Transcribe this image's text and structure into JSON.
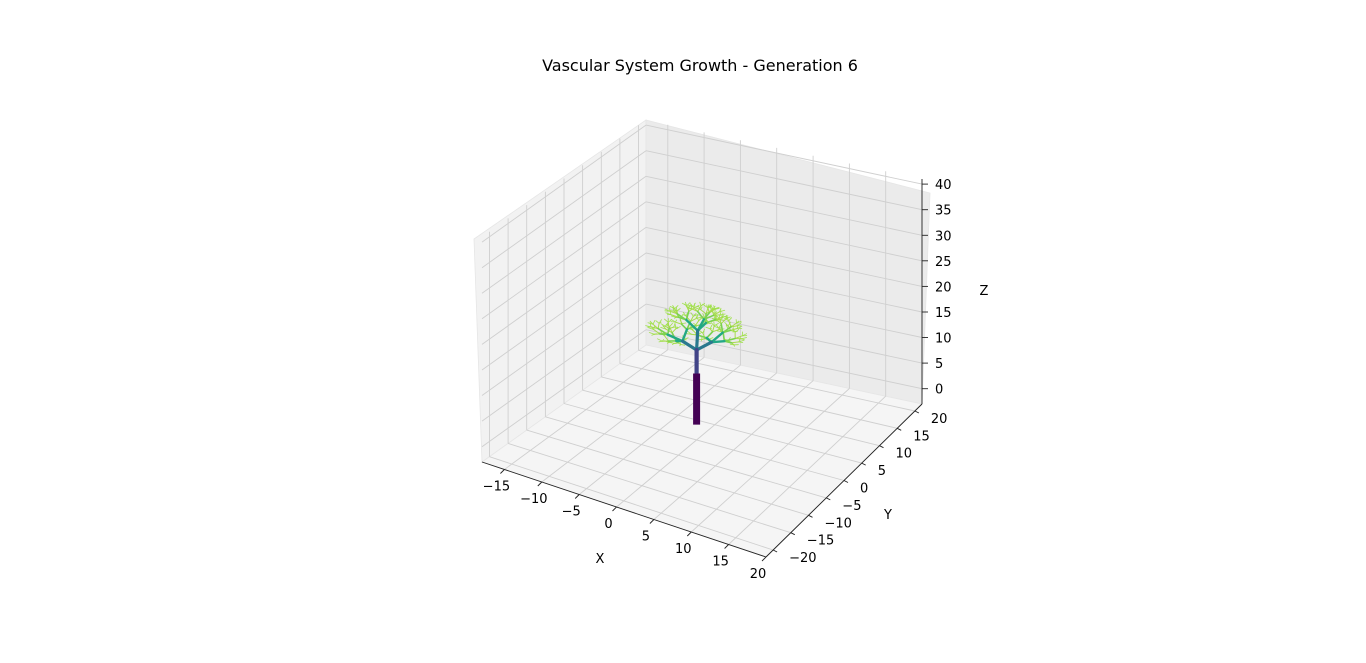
{
  "chart_data": {
    "type": "line3d",
    "title": "Vascular System Growth - Generation 6",
    "xlabel": "X",
    "ylabel": "Y",
    "zlabel": "Z",
    "xlim": [
      -18,
      20
    ],
    "ylim": [
      -22,
      22
    ],
    "zlim": [
      -3,
      41
    ],
    "x_ticks": [
      -15,
      -10,
      -5,
      0,
      5,
      10,
      15,
      20
    ],
    "y_ticks": [
      -20,
      -15,
      -10,
      -5,
      0,
      5,
      10,
      15,
      20
    ],
    "z_ticks": [
      0,
      5,
      10,
      15,
      20,
      25,
      30,
      35,
      40
    ],
    "grid": true,
    "colormap": "viridis",
    "generations": 6,
    "generation_colors": [
      "#440154",
      "#414487",
      "#2a788e",
      "#22a884",
      "#7ad151",
      "#a6db4a",
      "#9fe04b"
    ],
    "trunk": {
      "start": [
        0,
        0,
        0
      ],
      "end": [
        0,
        0,
        10
      ]
    }
  }
}
